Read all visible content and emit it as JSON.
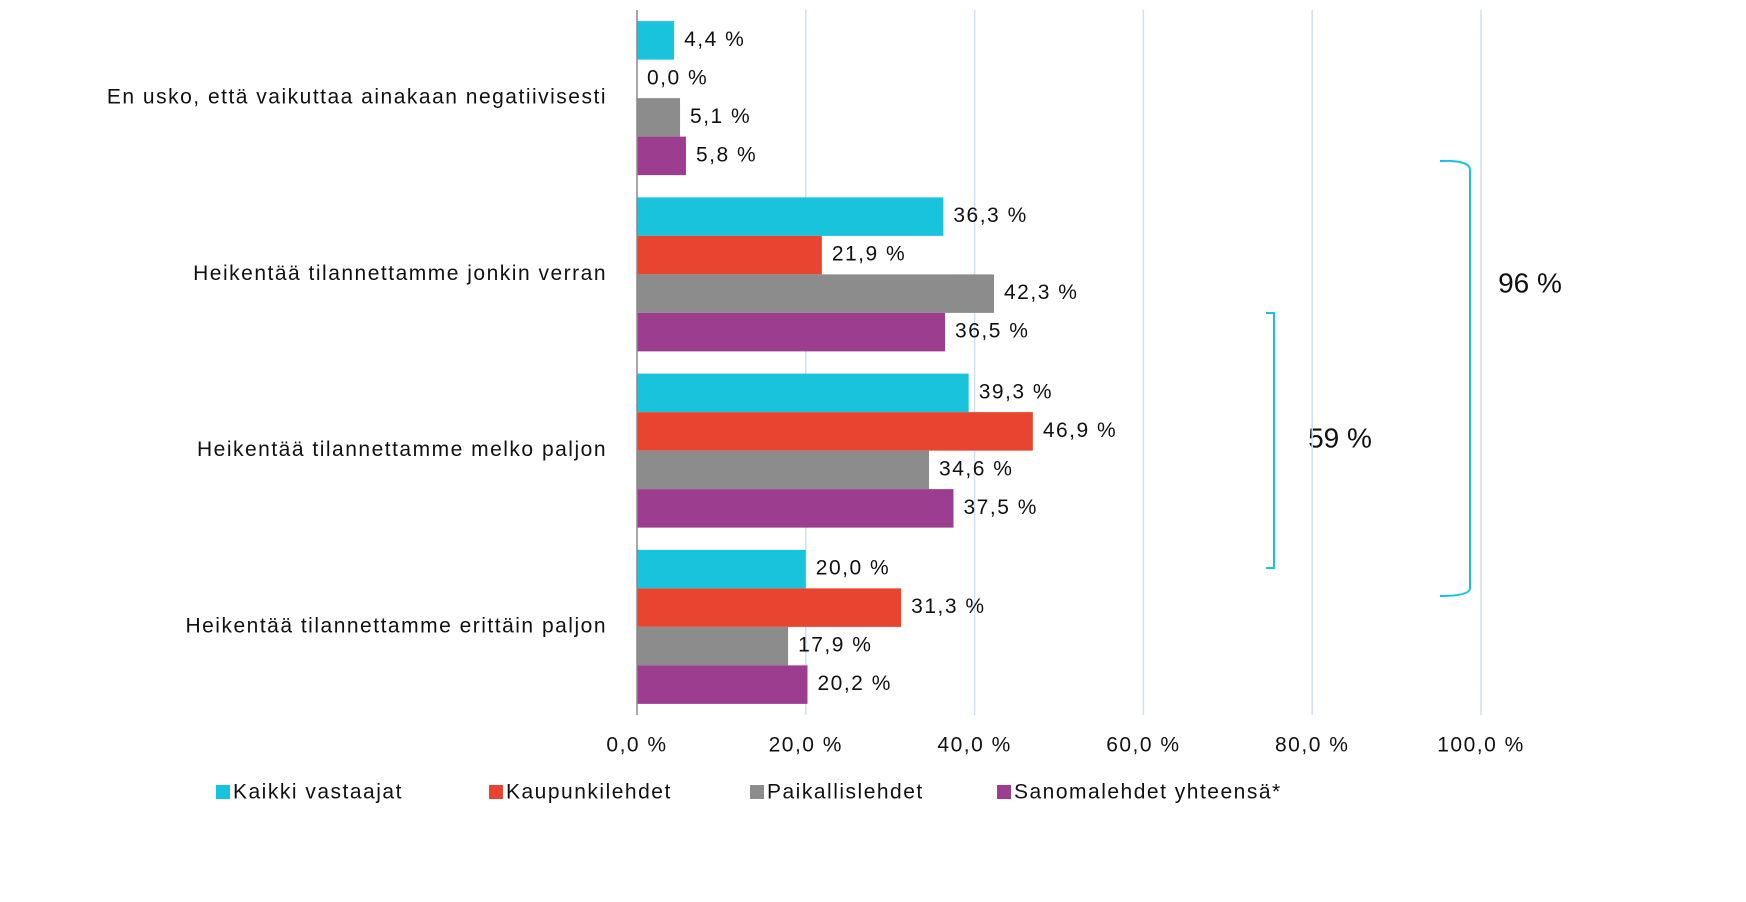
{
  "chart_data": {
    "type": "bar",
    "orientation": "horizontal",
    "categories": [
      "En usko, että vaikuttaa ainakaan negatiivisesti",
      "Heikentää tilannettamme jonkin verran",
      "Heikentää tilannettamme melko paljon",
      "Heikentää tilannettamme erittäin paljon"
    ],
    "series": [
      {
        "name": "Kaikki vastaajat",
        "color": "#1ac3dc",
        "values": [
          4.4,
          36.3,
          39.3,
          20.0
        ],
        "value_labels": [
          "4,4 %",
          "36,3 %",
          "39,3 %",
          "20,0 %"
        ]
      },
      {
        "name": "Kaupunkilehdet",
        "color": "#e9442f",
        "values": [
          0.0,
          21.9,
          46.9,
          31.3
        ],
        "value_labels": [
          "0,0 %",
          "21,9 %",
          "46,9 %",
          "31,3 %"
        ]
      },
      {
        "name": "Paikallislehdet",
        "color": "#8c8c8c",
        "values": [
          5.1,
          42.3,
          34.6,
          17.9
        ],
        "value_labels": [
          "5,1 %",
          "42,3 %",
          "34,6 %",
          "17,9 %"
        ]
      },
      {
        "name": "Sanomalehdet yhteensä*",
        "color": "#9c3d8f",
        "values": [
          5.8,
          36.5,
          37.5,
          20.2
        ],
        "value_labels": [
          "5,8 %",
          "36,5 %",
          "37,5 %",
          "20,2 %"
        ]
      }
    ],
    "xlim": [
      0,
      100
    ],
    "xticks": [
      {
        "value": 0,
        "label": "0,0 %"
      },
      {
        "value": 20,
        "label": "20,0 %"
      },
      {
        "value": 40,
        "label": "40,0 %"
      },
      {
        "value": 60,
        "label": "60,0 %"
      },
      {
        "value": 80,
        "label": "80,0 %"
      },
      {
        "value": 100,
        "label": "100,0 %"
      }
    ],
    "grid": true,
    "legend": "bottom",
    "annotations": [
      "59 %",
      "96 %"
    ]
  }
}
